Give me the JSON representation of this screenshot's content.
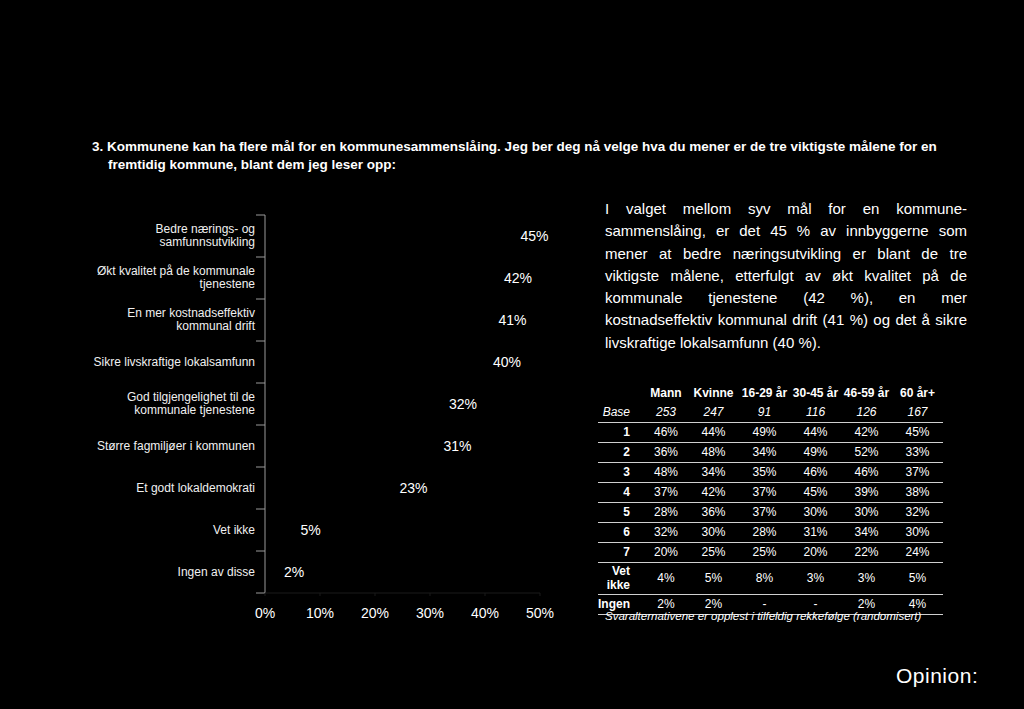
{
  "chart_data": {
    "type": "bar",
    "orientation": "horizontal",
    "title": "3. Kommunene kan ha flere mål for en kommunesammenslåing. Jeg ber deg nå velge hva du mener er de tre viktigste målene for en fremtidig kommune, blant dem jeg leser opp:",
    "categories": [
      "Bedre nærings- og samfunnsutvikling",
      "Økt kvalitet på de kommunale tjenestene",
      "En mer kostnadseffektiv kommunal drift",
      "Sikre livskraftige lokalsamfunn",
      "God tilgjengelighet til de kommunale tjenestene",
      "Større fagmiljøer i kommunen",
      "Et godt lokaldemokrati",
      "Vet ikke",
      "Ingen av disse"
    ],
    "values": [
      45,
      42,
      41,
      40,
      32,
      31,
      23,
      5,
      2
    ],
    "value_labels": [
      "45%",
      "42%",
      "41%",
      "40%",
      "32%",
      "31%",
      "23%",
      "5%",
      "2%"
    ],
    "data_labels": true,
    "color": "#000000",
    "xlim": [
      0,
      50
    ],
    "xticks": [
      {
        "value": 0,
        "label": "0%"
      },
      {
        "value": 10,
        "label": "10%"
      },
      {
        "value": 20,
        "label": "20%"
      },
      {
        "value": 30,
        "label": "30%"
      },
      {
        "value": 40,
        "label": "40%"
      },
      {
        "value": 50,
        "label": "50%"
      }
    ],
    "grid": false
  },
  "description": "I valget mellom syv mål for en kommune-sammenslåing, er det 45 % av innbyggerne som mener at bedre næringsutvikling er blant de tre viktigste målene, etterfulgt av økt kvalitet på de kommunale tjenestene (42 %), en mer kostnadseffektiv kommunal drift (41 %) og det å sikre livskraftige lokalsamfunn (40 %).",
  "table": {
    "header": [
      "Mann",
      "Kvinne",
      "16-29 år",
      "30-45 år",
      "46-59 år",
      "60 år+"
    ],
    "rows": [
      {
        "label": "Base",
        "values": [
          "253",
          "247",
          "91",
          "116",
          "126",
          "167"
        ]
      },
      {
        "label": "1",
        "values": [
          "46%",
          "44%",
          "49%",
          "44%",
          "42%",
          "45%"
        ]
      },
      {
        "label": "2",
        "values": [
          "36%",
          "48%",
          "34%",
          "49%",
          "52%",
          "33%"
        ]
      },
      {
        "label": "3",
        "values": [
          "48%",
          "34%",
          "35%",
          "46%",
          "46%",
          "37%"
        ]
      },
      {
        "label": "4",
        "values": [
          "37%",
          "42%",
          "37%",
          "45%",
          "39%",
          "38%"
        ]
      },
      {
        "label": "5",
        "values": [
          "28%",
          "36%",
          "37%",
          "30%",
          "30%",
          "32%"
        ]
      },
      {
        "label": "6",
        "values": [
          "32%",
          "30%",
          "28%",
          "31%",
          "34%",
          "30%"
        ]
      },
      {
        "label": "7",
        "values": [
          "20%",
          "25%",
          "25%",
          "20%",
          "22%",
          "24%"
        ]
      },
      {
        "label": "Vet ikke",
        "values": [
          "4%",
          "5%",
          "8%",
          "3%",
          "3%",
          "5%"
        ]
      },
      {
        "label": "Ingen",
        "values": [
          "2%",
          "2%",
          "-",
          "-",
          "2%",
          "4%"
        ]
      }
    ]
  },
  "footnote": "Svaralternativene er opplest i tilfeldig rekkefølge (randomisert)",
  "logo": "Opinion:"
}
